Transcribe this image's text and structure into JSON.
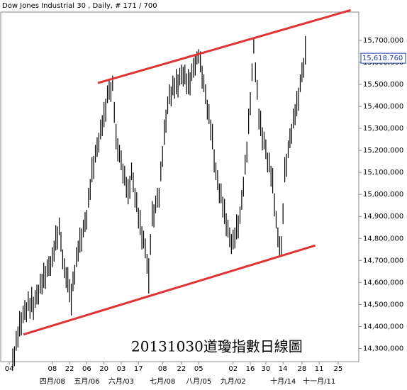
{
  "chart_data": {
    "type": "ohlc",
    "title": "Dow Jones Industrial 30 , Daily, # 171 / 700",
    "annotation": "20131030道瓊指數日線圖",
    "color": "#000000",
    "high": [
      14300,
      14310,
      14380,
      14400,
      14470,
      14465,
      14495,
      14520,
      14510,
      14560,
      14530,
      14580,
      14535,
      14565,
      14590,
      14590,
      14640,
      14640,
      14690,
      14675,
      14705,
      14720,
      14720,
      14760,
      14790,
      14860,
      14855,
      14895,
      14830,
      14750,
      14710,
      14670,
      14670,
      14615,
      14595,
      14650,
      14680,
      14760,
      14790,
      14850,
      14845,
      14885,
      14920,
      14930,
      15030,
      15070,
      15170,
      15175,
      15225,
      15260,
      15280,
      15340,
      15360,
      15420,
      15435,
      15495,
      15520,
      15510,
      15540,
      15420,
      15320,
      15255,
      15225,
      15200,
      15140,
      15130,
      15080,
      15070,
      15085,
      15145,
      15100,
      15030,
      15010,
      14940,
      14930,
      14855,
      14835,
      14800,
      14730,
      14710,
      14820,
      14970,
      14955,
      14995,
      15030,
      15030,
      15150,
      15220,
      15340,
      15385,
      15445,
      15500,
      15490,
      15540,
      15530,
      15570,
      15545,
      15575,
      15590,
      15580,
      15590,
      15550,
      15570,
      15555,
      15595,
      15620,
      15630,
      15650,
      15660,
      15650,
      15585,
      15545,
      15500,
      15430,
      15410,
      15340,
      15320,
      15205,
      15145,
      15110,
      15050,
      15050,
      14990,
      14980,
      14915,
      14885,
      14850,
      14820,
      14840,
      14850,
      14910,
      14905,
      14945,
      15020,
      15080,
      15180,
      15240,
      15390,
      15465,
      15595,
      15710,
      15600,
      15520,
      15390,
      15380,
      15305,
      15285,
      15250,
      15190,
      15190,
      15130,
      15120,
      15005,
      14925,
      14850,
      14810,
      14810,
      14960,
      15170,
      15185,
      15245,
      15300,
      15320,
      15390,
      15410,
      15470,
      15485,
      15545,
      15600,
      15620,
      15720
    ],
    "low": [
      14210,
      14220,
      14290,
      14305,
      14355,
      14360,
      14415,
      14430,
      14420,
      14470,
      14435,
      14465,
      14430,
      14485,
      14500,
      14500,
      14550,
      14545,
      14575,
      14570,
      14625,
      14630,
      14630,
      14670,
      14695,
      14745,
      14750,
      14815,
      14740,
      14660,
      14620,
      14575,
      14555,
      14510,
      14450,
      14560,
      14590,
      14670,
      14695,
      14735,
      14740,
      14805,
      14830,
      14840,
      14940,
      14975,
      15055,
      15070,
      15145,
      15170,
      15190,
      15250,
      15265,
      15305,
      15330,
      15415,
      15430,
      15420,
      15470,
      15325,
      15205,
      15150,
      15145,
      15110,
      15050,
      15040,
      14985,
      14955,
      14980,
      15065,
      15010,
      14940,
      14920,
      14845,
      14815,
      14750,
      14755,
      14710,
      14640,
      14550,
      14725,
      14855,
      14850,
      14915,
      14940,
      14940,
      15060,
      15125,
      15225,
      15280,
      15365,
      15410,
      15400,
      15450,
      15435,
      15455,
      15440,
      15495,
      15500,
      15490,
      15500,
      15455,
      15455,
      15450,
      15515,
      15530,
      15540,
      15590,
      15595,
      15555,
      15480,
      15465,
      15410,
      15340,
      15320,
      15245,
      15205,
      15100,
      15065,
      15020,
      14960,
      14960,
      14895,
      14865,
      14810,
      14805,
      14760,
      14730,
      14750,
      14755,
      14795,
      14800,
      14865,
      14930,
      14990,
      15090,
      15145,
      15275,
      15360,
      15515,
      15640,
      15510,
      15430,
      15295,
      15265,
      15200,
      15205,
      15160,
      15100,
      15100,
      15035,
      15005,
      14900,
      14845,
      14760,
      14720,
      14720,
      14865,
      15055,
      15080,
      15165,
      15210,
      15230,
      15300,
      15315,
      15355,
      15380,
      15465,
      15510,
      15530,
      15590
    ],
    "last_value": {
      "value": 15618.76,
      "label": "15,618.760"
    },
    "trend_lines": [
      {
        "color": "#e03434",
        "points": [
          [
            49.4,
            15506
          ],
          [
            196.3,
            15837
          ]
        ]
      },
      {
        "color": "#e03434",
        "points": [
          [
            6.2,
            14364
          ],
          [
            175.7,
            14768
          ]
        ]
      }
    ],
    "xlim": [
      -7,
      201
    ],
    "xticks": [
      {
        "value": -2,
        "label": "04"
      },
      {
        "value": 23,
        "label": "08"
      },
      {
        "value": 33,
        "label": "22"
      },
      {
        "value": 43,
        "label": "06"
      },
      {
        "value": 53,
        "label": "20"
      },
      {
        "value": 63,
        "label": "03"
      },
      {
        "value": 73,
        "label": "17"
      },
      {
        "value": 87,
        "label": "08"
      },
      {
        "value": 98,
        "label": "22"
      },
      {
        "value": 108,
        "label": "05"
      },
      {
        "value": 128,
        "label": "02"
      },
      {
        "value": 138,
        "label": "16"
      },
      {
        "value": 147,
        "label": "30"
      },
      {
        "value": 157,
        "label": "14"
      },
      {
        "value": 168,
        "label": "28"
      },
      {
        "value": 178,
        "label": "11"
      },
      {
        "value": 189,
        "label": "25"
      }
    ],
    "month_labels": [
      {
        "value": 23,
        "label": "四月/08"
      },
      {
        "value": 43,
        "label": "五月/06"
      },
      {
        "value": 63,
        "label": "六月/03"
      },
      {
        "value": 87,
        "label": "七月/08"
      },
      {
        "value": 108,
        "label": "八月/05"
      },
      {
        "value": 128,
        "label": "九月/02"
      },
      {
        "value": 157,
        "label": "十月/14"
      },
      {
        "value": 178,
        "label": "十一月/11"
      }
    ],
    "ylim": [
      14240.4,
      15828.5
    ],
    "yticks": [
      {
        "value": 14300,
        "label": "14,300,000"
      },
      {
        "value": 14400,
        "label": "14,400,000"
      },
      {
        "value": 14500,
        "label": "14,500,000"
      },
      {
        "value": 14600,
        "label": "14,600,000"
      },
      {
        "value": 14700,
        "label": "14,700,000"
      },
      {
        "value": 14800,
        "label": "14,800,000"
      },
      {
        "value": 14900,
        "label": "14,900,000"
      },
      {
        "value": 15000,
        "label": "15,000,000"
      },
      {
        "value": 15100,
        "label": "15,100,000"
      },
      {
        "value": 15200,
        "label": "15,200,000"
      },
      {
        "value": 15300,
        "label": "15,300,000"
      },
      {
        "value": 15400,
        "label": "15,400,000"
      },
      {
        "value": 15500,
        "label": "15,500,000"
      },
      {
        "value": 15600,
        "label": "15,600,000"
      },
      {
        "value": 15700,
        "label": "15,700,000"
      }
    ]
  }
}
